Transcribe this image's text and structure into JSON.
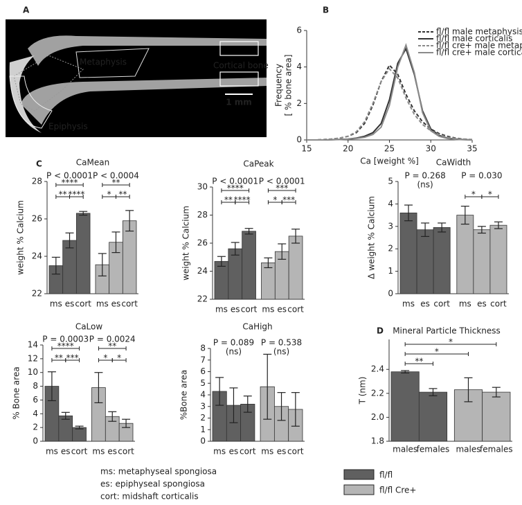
{
  "panel_labels": [
    "A",
    "B",
    "C",
    "D"
  ],
  "panel_a": {
    "labels": [
      "Metaphysis",
      "Cortical bone",
      "1 mm",
      "Epiphysis"
    ]
  },
  "chart_data": [
    {
      "type": "line",
      "xlabel": "Ca [weight %]",
      "ylabel": [
        "Frequency",
        "[ % bone area]"
      ],
      "x": [
        15,
        16,
        17,
        18,
        19,
        20,
        21,
        22,
        23,
        24,
        25,
        26,
        27,
        28,
        29,
        30,
        31,
        32,
        33,
        34,
        35
      ],
      "xlim": [
        15,
        35
      ],
      "ylim": [
        0,
        6
      ],
      "xticks": [
        15,
        20,
        25,
        30,
        35
      ],
      "yticks": [
        0,
        2,
        4,
        6
      ],
      "legend": "upper right",
      "series": [
        {
          "name": "fl/fl male metaphysis",
          "color": "#333333",
          "dash": true,
          "values": [
            0,
            0,
            0.02,
            0.05,
            0.1,
            0.2,
            0.4,
            0.9,
            1.9,
            3.2,
            4.1,
            3.6,
            2.5,
            1.6,
            1.0,
            0.6,
            0.35,
            0.2,
            0.1,
            0.05,
            0.02
          ]
        },
        {
          "name": "fl/fl male corticalis",
          "color": "#333333",
          "dash": false,
          "values": [
            0,
            0,
            0,
            0.01,
            0.03,
            0.05,
            0.1,
            0.2,
            0.4,
            0.9,
            2.2,
            4.2,
            5.0,
            3.6,
            1.6,
            0.6,
            0.25,
            0.1,
            0.05,
            0.02,
            0
          ]
        },
        {
          "name": "fl/fl cre+ male metaphysis",
          "color": "#8a8a8a",
          "dash": true,
          "values": [
            0,
            0,
            0.02,
            0.05,
            0.1,
            0.2,
            0.45,
            1.0,
            2.0,
            3.2,
            3.9,
            3.4,
            2.3,
            1.4,
            0.85,
            0.5,
            0.3,
            0.15,
            0.08,
            0.04,
            0.01
          ]
        },
        {
          "name": "fl/fl cre+ male corticalis",
          "color": "#8a8a8a",
          "dash": false,
          "values": [
            0,
            0,
            0,
            0.01,
            0.02,
            0.04,
            0.08,
            0.15,
            0.3,
            0.7,
            1.9,
            4.0,
            5.2,
            3.7,
            1.5,
            0.5,
            0.2,
            0.08,
            0.03,
            0.01,
            0
          ]
        }
      ]
    },
    {
      "type": "bar",
      "title": "CaMean",
      "ylabel": "weight % Calcium",
      "categories": [
        "ms",
        "es",
        "cort",
        "ms",
        "es",
        "cort"
      ],
      "values": [
        23.5,
        24.85,
        26.3,
        23.55,
        24.75,
        25.9
      ],
      "errors": [
        0.45,
        0.4,
        0.1,
        0.6,
        0.55,
        0.55
      ],
      "colors": [
        "#606060",
        "#606060",
        "#606060",
        "#b5b5b5",
        "#b5b5b5",
        "#b5b5b5"
      ],
      "ylim": [
        22,
        28
      ],
      "yticks": [
        22,
        24,
        26,
        28
      ],
      "p_values": [
        {
          "text": "P < 0.0001",
          "from": 0,
          "to": 2
        },
        {
          "text": "P < 0.0004",
          "from": 3,
          "to": 5
        }
      ],
      "brackets": [
        {
          "text": "****",
          "from": 0,
          "to": 2
        },
        {
          "text": "**",
          "from": 0,
          "to": 1
        },
        {
          "text": "****",
          "from": 1,
          "to": 2
        },
        {
          "text": "**",
          "from": 3,
          "to": 5
        },
        {
          "text": "*",
          "from": 3,
          "to": 4
        },
        {
          "text": "**",
          "from": 4,
          "to": 5
        }
      ]
    },
    {
      "type": "bar",
      "title": "CaPeak",
      "ylabel": "weight % Calcium",
      "categories": [
        "ms",
        "es",
        "cort",
        "ms",
        "es",
        "cort"
      ],
      "values": [
        24.7,
        25.6,
        26.85,
        24.6,
        25.4,
        26.5
      ],
      "errors": [
        0.35,
        0.45,
        0.2,
        0.35,
        0.55,
        0.5
      ],
      "colors": [
        "#606060",
        "#606060",
        "#606060",
        "#b5b5b5",
        "#b5b5b5",
        "#b5b5b5"
      ],
      "ylim": [
        22,
        30
      ],
      "yticks": [
        22,
        24,
        26,
        28,
        30
      ],
      "p_values": [
        {
          "text": "P < 0.0001",
          "from": 0,
          "to": 2
        },
        {
          "text": "P < 0.0001",
          "from": 3,
          "to": 5
        }
      ],
      "brackets": [
        {
          "text": "****",
          "from": 0,
          "to": 2
        },
        {
          "text": "**",
          "from": 0,
          "to": 1
        },
        {
          "text": "****",
          "from": 1,
          "to": 2
        },
        {
          "text": "***",
          "from": 3,
          "to": 5
        },
        {
          "text": "*",
          "from": 3,
          "to": 4
        },
        {
          "text": "***",
          "from": 4,
          "to": 5
        }
      ]
    },
    {
      "type": "bar",
      "title": "CaWidth",
      "ylabel": "Δ weight % Calcium",
      "categories": [
        "ms",
        "es",
        "cort",
        "ms",
        "es",
        "cort"
      ],
      "values": [
        3.6,
        2.85,
        2.95,
        3.5,
        2.85,
        3.05
      ],
      "errors": [
        0.35,
        0.3,
        0.2,
        0.4,
        0.15,
        0.15
      ],
      "colors": [
        "#606060",
        "#606060",
        "#606060",
        "#b5b5b5",
        "#b5b5b5",
        "#b5b5b5"
      ],
      "ylim": [
        0,
        5
      ],
      "yticks": [
        0,
        1,
        2,
        3,
        4,
        5
      ],
      "p_values": [
        {
          "text": "P = 0.268",
          "note": "(ns)",
          "from": 0,
          "to": 2
        },
        {
          "text": "P = 0.030",
          "from": 3,
          "to": 5
        }
      ],
      "brackets": [
        {
          "text": "*",
          "from": 3,
          "to": 4
        },
        {
          "text": "*",
          "from": 4,
          "to": 5
        }
      ]
    },
    {
      "type": "bar",
      "title": "CaLow",
      "ylabel": "% Bone area",
      "categories": [
        "ms",
        "es",
        "cort",
        "ms",
        "es",
        "cort"
      ],
      "values": [
        8.0,
        3.7,
        2.0,
        7.8,
        3.6,
        2.6
      ],
      "errors": [
        2.1,
        0.5,
        0.2,
        2.2,
        0.7,
        0.6
      ],
      "colors": [
        "#606060",
        "#606060",
        "#606060",
        "#b5b5b5",
        "#b5b5b5",
        "#b5b5b5"
      ],
      "ylim": [
        0,
        14
      ],
      "yticks": [
        0,
        2,
        4,
        6,
        8,
        10,
        12,
        14
      ],
      "p_values": [
        {
          "text": "P = 0.0003",
          "from": 0,
          "to": 2
        },
        {
          "text": "P = 0.0024",
          "from": 3,
          "to": 5
        }
      ],
      "brackets": [
        {
          "text": "****",
          "from": 0,
          "to": 2
        },
        {
          "text": "**",
          "from": 0,
          "to": 1
        },
        {
          "text": "***",
          "from": 1,
          "to": 2
        },
        {
          "text": "**",
          "from": 3,
          "to": 5
        },
        {
          "text": "*",
          "from": 3,
          "to": 4
        },
        {
          "text": "*",
          "from": 4,
          "to": 5
        }
      ]
    },
    {
      "type": "bar",
      "title": "CaHigh",
      "ylabel": "%Bone area",
      "categories": [
        "ms",
        "es",
        "cort",
        "ms",
        "es",
        "cort"
      ],
      "values": [
        4.3,
        3.1,
        3.2,
        4.7,
        3.0,
        2.75
      ],
      "errors": [
        1.2,
        1.5,
        0.7,
        2.8,
        1.2,
        1.45
      ],
      "colors": [
        "#606060",
        "#606060",
        "#606060",
        "#b5b5b5",
        "#b5b5b5",
        "#b5b5b5"
      ],
      "ylim": [
        0,
        8
      ],
      "yticks": [
        0,
        1,
        2,
        3,
        4,
        5,
        6,
        7,
        8
      ],
      "p_values": [
        {
          "text": "P = 0.089",
          "note": "(ns)",
          "from": 0,
          "to": 2
        },
        {
          "text": "P = 0.538",
          "note": "(ns)",
          "from": 3,
          "to": 5
        }
      ],
      "brackets": []
    },
    {
      "type": "bar",
      "title": "Mineral Particle Thickness",
      "ylabel": "T (nm)",
      "categories": [
        "males",
        "females",
        "males",
        "females"
      ],
      "values": [
        2.38,
        2.21,
        2.23,
        2.21
      ],
      "errors": [
        0.01,
        0.03,
        0.1,
        0.04
      ],
      "colors": [
        "#606060",
        "#606060",
        "#b5b5b5",
        "#b5b5b5"
      ],
      "ylim": [
        1.8,
        2.65
      ],
      "yticks": [
        1.8,
        {
          "value": 2,
          "label": "2.0"
        },
        2.2,
        2.4
      ],
      "brackets": [
        {
          "text": "*",
          "from": 0,
          "to": 3
        },
        {
          "text": "*",
          "from": 0,
          "to": 2
        },
        {
          "text": "**",
          "from": 0,
          "to": 1
        }
      ]
    }
  ],
  "legend": {
    "notes": [
      "ms: metaphyseal spongiosa",
      "es: epiphyseal spongiosa",
      "cort: midshaft corticalis"
    ],
    "series": [
      {
        "name": "fl/fl",
        "color": "#606060"
      },
      {
        "name": "fl/fl Cre+",
        "color": "#b5b5b5"
      }
    ]
  }
}
